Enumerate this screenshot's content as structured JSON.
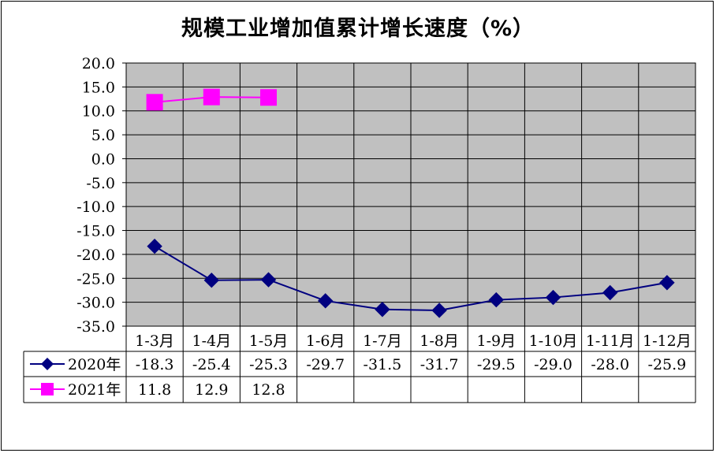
{
  "chart_data": {
    "type": "line",
    "title": "规模工业增加值累计增长速度（%）",
    "categories": [
      "1-3月",
      "1-4月",
      "1-5月",
      "1-6月",
      "1-7月",
      "1-8月",
      "1-9月",
      "1-10月",
      "1-11月",
      "1-12月"
    ],
    "series": [
      {
        "name": "2020年",
        "values": [
          -18.3,
          -25.4,
          -25.3,
          -29.7,
          -31.5,
          -31.7,
          -29.5,
          -29.0,
          -28.0,
          -25.9
        ],
        "labels": [
          "-18.3",
          "-25.4",
          "-25.3",
          "-29.7",
          "-31.5",
          "-31.7",
          "-29.5",
          "-29.0",
          "-28.0",
          "-25.9"
        ],
        "color": "#000080",
        "marker": "diamond"
      },
      {
        "name": "2021年",
        "values": [
          11.8,
          12.9,
          12.8,
          null,
          null,
          null,
          null,
          null,
          null,
          null
        ],
        "labels": [
          "11.8",
          "12.9",
          "12.8",
          "",
          "",
          "",
          "",
          "",
          "",
          ""
        ],
        "color": "#ff00ff",
        "marker": "square"
      }
    ],
    "ylim": [
      -35,
      20
    ],
    "yticks": [
      "20.0",
      "15.0",
      "10.0",
      "5.0",
      "0.0",
      "-5.0",
      "-10.0",
      "-15.0",
      "-20.0",
      "-25.0",
      "-30.0",
      "-35.0"
    ],
    "ytick_values": [
      20,
      15,
      10,
      5,
      0,
      -5,
      -10,
      -15,
      -20,
      -25,
      -30,
      -35
    ],
    "grid": true,
    "plot_background": "#c0c0c0",
    "legend": "data-table"
  }
}
